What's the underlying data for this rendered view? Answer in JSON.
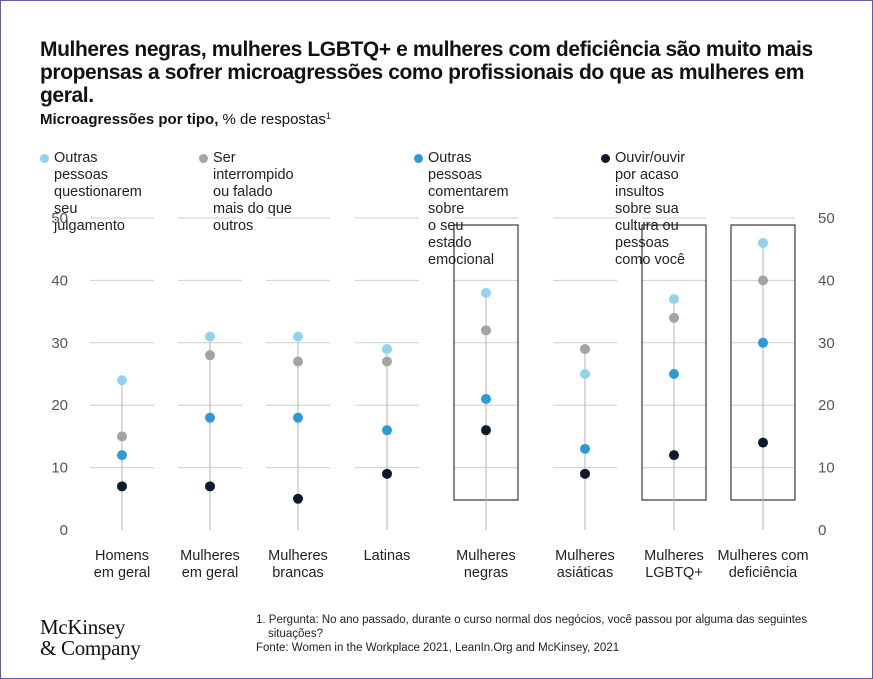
{
  "title": "Mulheres negras, mulheres LGBTQ+ e mulheres com deficiência são muito mais propensas a sofrer microagressões como profissionais do que as mulheres em geral.",
  "subtitle_bold": "Microagressões por tipo,",
  "subtitle_rest": " % de respostas",
  "subtitle_sup": "1",
  "footnote_1": "1. Pergunta: No ano passado, durante o curso normal dos negócios, você passou por alguma das seguintes situações?",
  "footnote_source": "Fonte: Women in the Workplace 2021, LeanIn.Org and McKinsey, 2021",
  "logo": {
    "line1": "McKinsey",
    "line2": "& Company"
  },
  "chart_data": {
    "type": "scatter",
    "ylim": [
      0,
      50
    ],
    "yticks": [
      0,
      10,
      20,
      30,
      40,
      50
    ],
    "grid": true,
    "legend_position": "top",
    "categories": [
      "Homens\nem geral",
      "Mulheres\nem geral",
      "Mulheres\nbrancas",
      "Latinas",
      "Mulheres\nnegras",
      "Mulheres\nasiáticas",
      "Mulheres\nLGBTQ+",
      "Mulheres com\ndeficiência"
    ],
    "highlighted": [
      false,
      false,
      false,
      false,
      true,
      false,
      true,
      true
    ],
    "series": [
      {
        "name": "Outras pessoas\nquestionarem seu\njulgamento",
        "color": "#8fd3ee",
        "values": [
          24,
          31,
          31,
          29,
          38,
          25,
          37,
          46
        ]
      },
      {
        "name": "Ser interrompido ou falado\nmais do que outros",
        "color": "#a3a3a3",
        "values": [
          15,
          28,
          27,
          27,
          32,
          29,
          34,
          40
        ]
      },
      {
        "name": "Outras pessoas\ncomentarem sobre\no seu estado emocional",
        "color": "#2c9ad9",
        "values": [
          12,
          18,
          18,
          16,
          21,
          13,
          25,
          30
        ]
      },
      {
        "name": "Ouvir/ouvir por acaso insultos\nsobre sua cultura ou pessoas\ncomo você",
        "color": "#0c1a2b",
        "values": [
          7,
          7,
          5,
          9,
          16,
          9,
          12,
          14
        ]
      }
    ]
  }
}
